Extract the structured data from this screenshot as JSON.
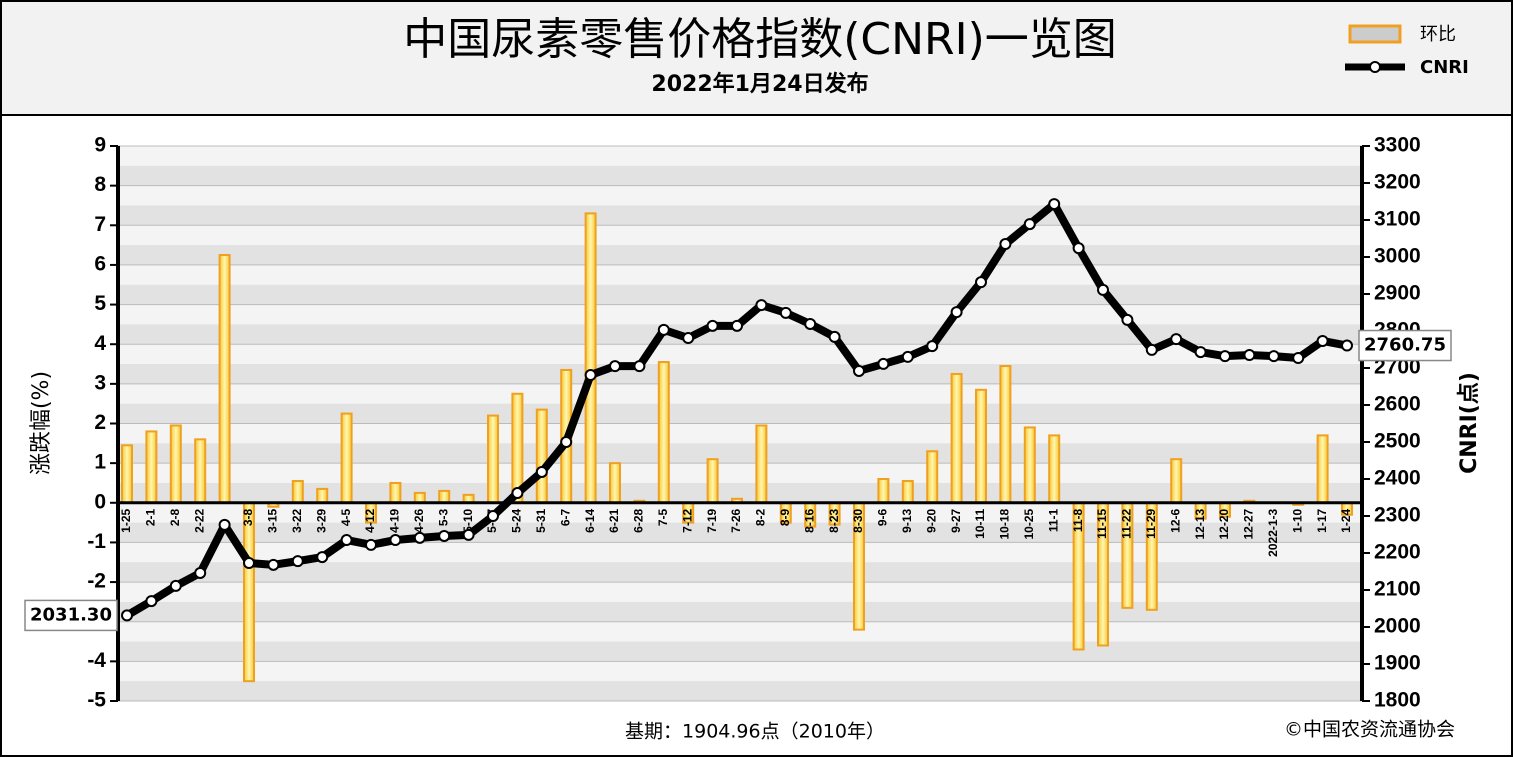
{
  "chart_data": {
    "type": "bar",
    "title": "中国尿素零售价格指数(CNRI)一览图",
    "subtitle": "2022年1月24日发布",
    "y_label": "涨跌幅(%)",
    "y2_label": "CNRI(点)",
    "footer": "基期：1904.96点（2010年）",
    "credit": "©中国农资流通协会",
    "legend": "top-right",
    "categories": [
      "1-25",
      "2-1",
      "2-8",
      "2-22",
      null,
      "3-8",
      "3-15",
      "3-22",
      "3-29",
      "4-5",
      "4-12",
      "4-19",
      "4-26",
      "5-3",
      "5-10",
      "5-17",
      "5-24",
      "5-31",
      "6-7",
      "6-14",
      "6-21",
      "6-28",
      "7-5",
      "7-12",
      "7-19",
      "7-26",
      "8-2",
      "8-9",
      "8-16",
      "8-23",
      "8-30",
      "9-6",
      "9-13",
      "9-20",
      "9-27",
      "10-11",
      "10-18",
      "10-25",
      "11-1",
      "11-8",
      "11-15",
      "11-22",
      "11-29",
      "12-6",
      "12-13",
      "12-20",
      "12-27",
      "2022-1-3",
      "1-10",
      "1-17",
      "1-24"
    ],
    "series": [
      {
        "name": "环比",
        "type": "bar",
        "axis": "y",
        "color": "#f0a020",
        "values": [
          1.45,
          1.8,
          1.95,
          1.6,
          6.25,
          -4.5,
          -0.1,
          0.55,
          0.35,
          2.25,
          -0.5,
          0.5,
          0.25,
          0.3,
          0.2,
          2.2,
          2.75,
          2.35,
          3.35,
          7.3,
          1.0,
          0.05,
          3.55,
          -0.5,
          1.1,
          0.1,
          1.95,
          -0.5,
          -0.6,
          -0.55,
          -3.2,
          0.6,
          0.55,
          1.3,
          3.25,
          2.85,
          3.45,
          1.9,
          1.7,
          -3.7,
          -3.6,
          -2.65,
          -2.7,
          1.1,
          -0.4,
          -0.35,
          0.05,
          0,
          -0.05,
          1.7,
          -0.3
        ]
      },
      {
        "name": "CNRI",
        "type": "line",
        "axis": "y2",
        "color": "#000000",
        "values": [
          2031.3,
          2070,
          2111,
          2146,
          2276,
          2173,
          2168,
          2178,
          2189,
          2235,
          2222,
          2235,
          2241,
          2246,
          2249,
          2300,
          2362,
          2419,
          2500,
          2681,
          2705,
          2705,
          2803,
          2781,
          2814,
          2814,
          2870,
          2849,
          2819,
          2784,
          2692,
          2711,
          2730,
          2759,
          2851,
          2932,
          3035,
          3089,
          3143,
          3024,
          2911,
          2830,
          2749,
          2778,
          2743,
          2732,
          2735,
          2732,
          2727,
          2773,
          2760.75
        ],
        "value_labels": [
          "2031.30",
          null,
          null,
          null,
          null,
          null,
          null,
          null,
          null,
          null,
          null,
          null,
          null,
          null,
          null,
          null,
          null,
          null,
          null,
          null,
          null,
          null,
          null,
          null,
          null,
          null,
          null,
          null,
          null,
          null,
          null,
          null,
          null,
          null,
          null,
          null,
          null,
          null,
          null,
          null,
          null,
          null,
          null,
          null,
          null,
          null,
          null,
          null,
          null,
          null,
          "2760.75"
        ]
      }
    ],
    "ylim": [
      -5,
      9
    ],
    "yticks": [
      -5,
      -4,
      -3,
      -2,
      -1,
      0,
      1,
      2,
      3,
      4,
      5,
      6,
      7,
      8,
      9
    ],
    "y2lim": [
      1800,
      3300
    ],
    "y2ticks": [
      1800,
      1900,
      2000,
      2100,
      2200,
      2300,
      2400,
      2500,
      2600,
      2700,
      2800,
      2900,
      3000,
      3100,
      3200,
      3300
    ]
  }
}
